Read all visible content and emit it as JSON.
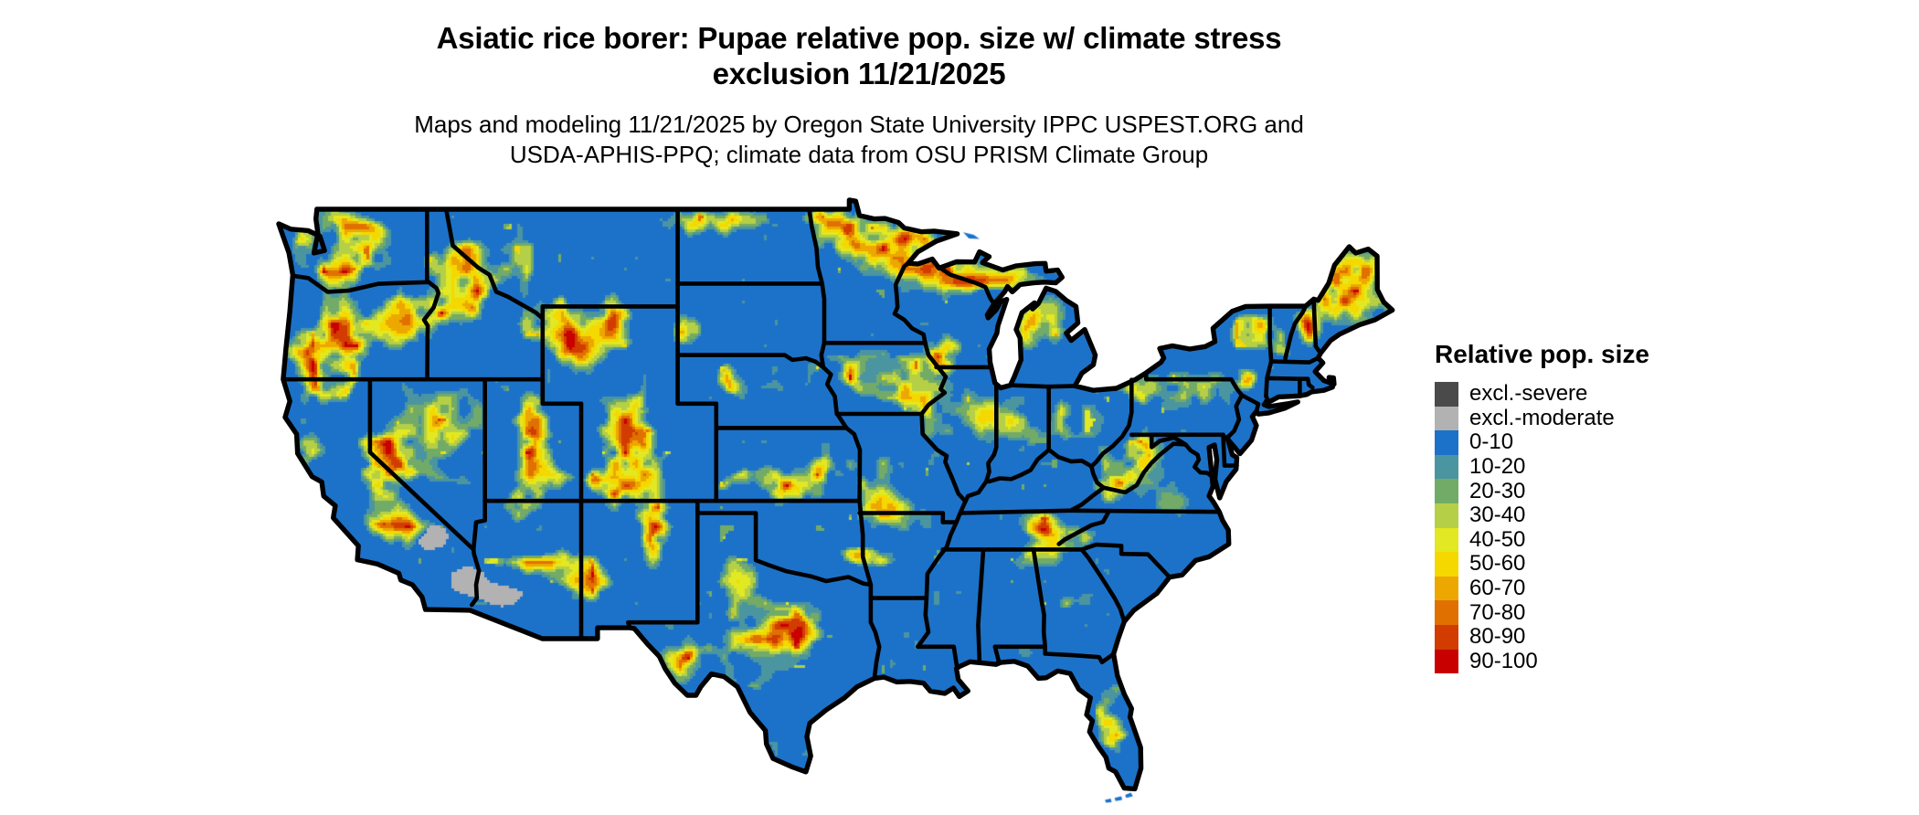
{
  "title": {
    "line1": "Asiatic rice borer: Pupae relative pop. size w/ climate stress",
    "line2": "exclusion 11/21/2025"
  },
  "subtitle": {
    "line1": "Maps and modeling 11/21/2025 by Oregon State University IPPC USPEST.ORG and",
    "line2": "USDA-APHIS-PPQ; climate data from OSU PRISM Climate Group"
  },
  "legend": {
    "title": "Relative pop. size",
    "entries": [
      {
        "label": "excl.-severe",
        "color": "#4A4A4A"
      },
      {
        "label": "excl.-moderate",
        "color": "#B2B2B2"
      },
      {
        "label": "0-10",
        "color": "#1C72C8"
      },
      {
        "label": "10-20",
        "color": "#4B95A0"
      },
      {
        "label": "20-30",
        "color": "#72AB68"
      },
      {
        "label": "30-40",
        "color": "#B5CF46"
      },
      {
        "label": "40-50",
        "color": "#E2E821"
      },
      {
        "label": "50-60",
        "color": "#F5D800"
      },
      {
        "label": "60-70",
        "color": "#ECA800"
      },
      {
        "label": "70-80",
        "color": "#E07000"
      },
      {
        "label": "80-90",
        "color": "#D23C00"
      },
      {
        "label": "90-100",
        "color": "#C80000"
      }
    ]
  },
  "map": {
    "region": "Continental United States",
    "water_background": "#FFFFFF",
    "state_border_color": "#000000",
    "base_fill": "#1C72C8"
  }
}
